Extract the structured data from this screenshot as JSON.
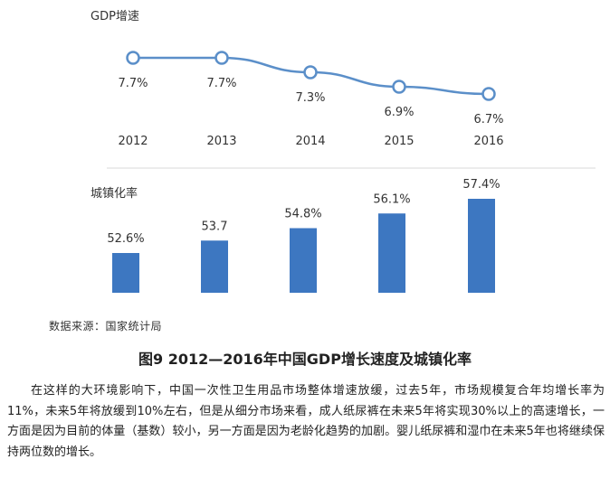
{
  "chart_data": [
    {
      "type": "line",
      "title": "GDP增速",
      "categories": [
        "2012",
        "2013",
        "2014",
        "2015",
        "2016"
      ],
      "values": [
        7.7,
        7.7,
        7.3,
        6.9,
        6.7
      ],
      "value_labels": [
        "7.7%",
        "7.7%",
        "7.3%",
        "6.9%",
        "6.7%"
      ],
      "color": "#5b8fc9"
    },
    {
      "type": "bar",
      "title": "城镇化率",
      "categories": [
        "2012",
        "2013",
        "2014",
        "2015",
        "2016"
      ],
      "values": [
        52.6,
        53.7,
        54.8,
        56.1,
        57.4
      ],
      "value_labels": [
        "52.6%",
        "53.7",
        "54.8%",
        "56.1%",
        "57.4%"
      ],
      "color": "#3d77c1"
    }
  ],
  "source_note": "数据来源：国家统计局",
  "figure_caption": "图9 2012—2016年中国GDP增长速度及城镇化率",
  "paragraph": "在这样的大环境影响下，中国一次性卫生用品市场整体增速放缓，过去5年，市场规模复合年均增长率为11%，未来5年将放缓到10%左右，但是从细分市场来看，成人纸尿裤在未来5年将实现30%以上的高速增长，一方面是因为目前的体量（基数）较小，另一方面是因为老龄化趋势的加剧。婴儿纸尿裤和湿巾在未来5年也将继续保持两位数的增长。"
}
